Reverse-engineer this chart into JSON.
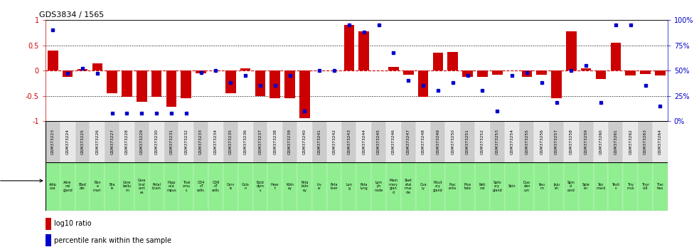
{
  "title": "GDS3834 / 1565",
  "samples": [
    "GSM373223",
    "GSM373224",
    "GSM373225",
    "GSM373226",
    "GSM373227",
    "GSM373228",
    "GSM373229",
    "GSM373230",
    "GSM373231",
    "GSM373232",
    "GSM373233",
    "GSM373234",
    "GSM373235",
    "GSM373236",
    "GSM373237",
    "GSM373238",
    "GSM373239",
    "GSM373240",
    "GSM373241",
    "GSM373242",
    "GSM373243",
    "GSM373244",
    "GSM373245",
    "GSM373246",
    "GSM373247",
    "GSM373248",
    "GSM373249",
    "GSM373250",
    "GSM373251",
    "GSM373252",
    "GSM373253",
    "GSM373254",
    "GSM373255",
    "GSM373256",
    "GSM373257",
    "GSM373258",
    "GSM373259",
    "GSM373260",
    "GSM373261",
    "GSM373262",
    "GSM373263",
    "GSM373264"
  ],
  "tissues": [
    "Adip\nose",
    "Adre\nnal\ngland",
    "Blad\nder",
    "Bon\ne\nmarr",
    "Bra\nin",
    "Cere\nbellu\nm",
    "Cere\nbral\ncort\nex",
    "Fetal\nbrain",
    "Hipp\noca\nmpus",
    "Thal\namu\ns",
    "CD4\n+T\ncells",
    "CD8\n+T\ncells",
    "Cerv\nix",
    "Colo\nn",
    "Epid\ndym\ns",
    "Hear\nt",
    "Kidn\ney",
    "Feta\nkidn\ney",
    "Liv\ner",
    "Feta\nliver",
    "Lun\ng",
    "Feta\nlung",
    "Lym\nph\nnode",
    "Mam\nmary\nglan\nd",
    "Sket\netal\nmus\ncle",
    "Ova\nry",
    "Pituit\nary\ngland",
    "Plac\nenta",
    "Pros\ntate",
    "Reti\nnal",
    "Saliv\nary\ngland",
    "Skin",
    "Duo\nden\num",
    "Ileu\nm",
    "Jeju\nen",
    "Spin\nal\ncord",
    "Sple\nen",
    "Sto\nmack",
    "Testi\ns",
    "Thy\nmus",
    "Thyr\noid",
    "Trac\nhea"
  ],
  "log10_ratio": [
    0.4,
    -0.12,
    0.03,
    0.15,
    -0.45,
    -0.52,
    -0.62,
    -0.52,
    -0.72,
    -0.55,
    -0.05,
    0.0,
    -0.45,
    0.05,
    -0.5,
    -0.55,
    -0.55,
    -0.95,
    0.0,
    0.0,
    0.9,
    0.78,
    0.0,
    0.07,
    -0.08,
    -0.52,
    0.35,
    0.37,
    -0.12,
    -0.12,
    -0.08,
    0.0,
    -0.13,
    -0.08,
    -0.55,
    0.78,
    0.05,
    -0.17,
    0.55,
    -0.1,
    -0.07,
    -0.1
  ],
  "percentile": [
    90,
    47,
    52,
    47,
    8,
    8,
    8,
    8,
    8,
    8,
    48,
    50,
    38,
    45,
    35,
    35,
    45,
    10,
    50,
    50,
    95,
    88,
    95,
    68,
    40,
    35,
    30,
    38,
    45,
    30,
    10,
    45,
    48,
    38,
    18,
    50,
    55,
    18,
    95,
    95,
    35,
    15
  ],
  "bar_color": "#cc0000",
  "dot_color": "#0000cc",
  "zero_line_color": "#cc0000",
  "dotted_line_color": "#555555",
  "ylim": [
    -1,
    1
  ],
  "y2lim": [
    0,
    100
  ],
  "hlines": [
    0.5,
    0.0,
    -0.5
  ],
  "legend_log10": "log10 ratio",
  "legend_pct": "percentile rank within the sample"
}
